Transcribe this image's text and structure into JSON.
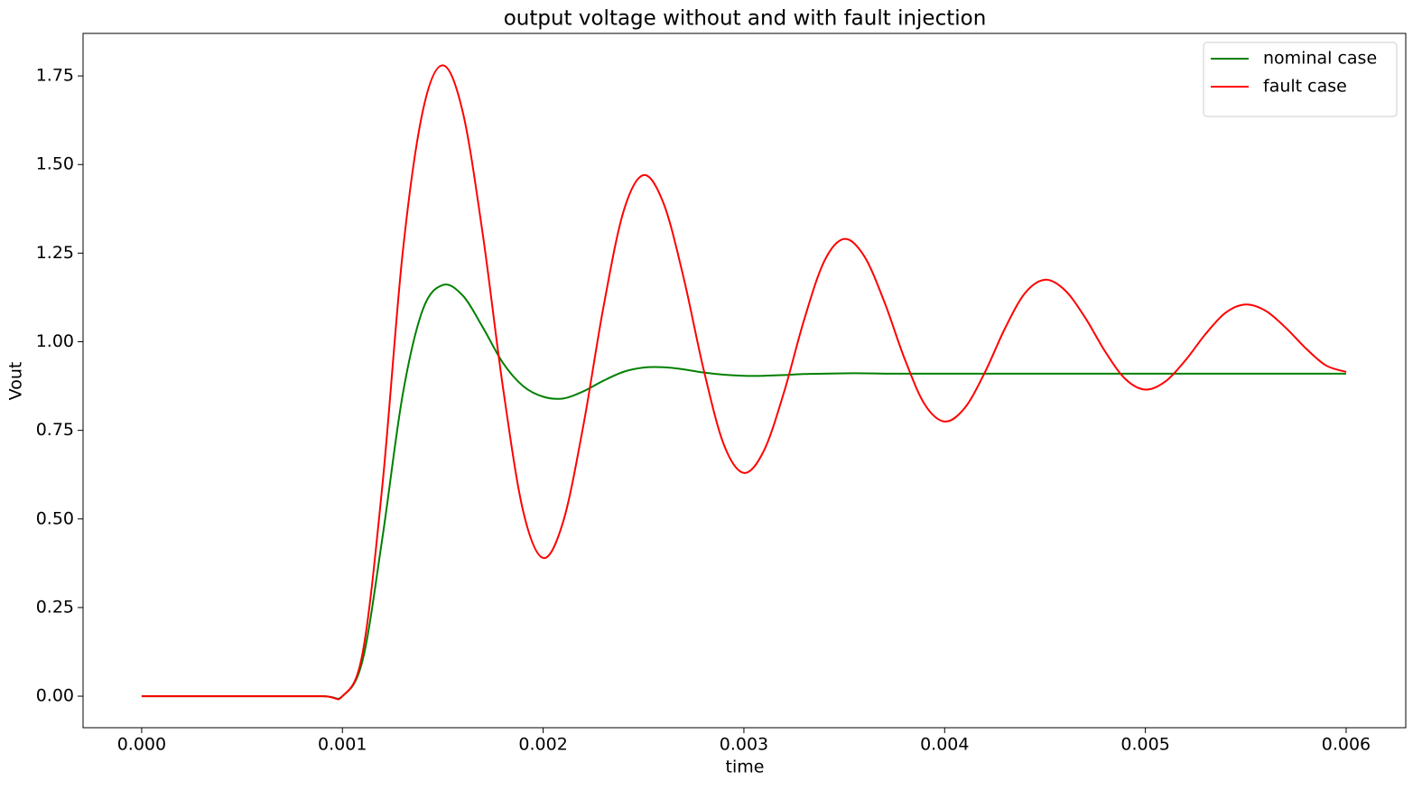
{
  "chart_data": {
    "type": "line",
    "title": "output voltage without and with fault injection",
    "x_label": "time",
    "y_label": "Vout",
    "x": [
      0,
      0.0005,
      0.0009,
      0.001,
      0.0011,
      0.0012,
      0.0013,
      0.0014,
      0.0015,
      0.0016,
      0.0017,
      0.0018,
      0.0019,
      0.002,
      0.0021,
      0.0022,
      0.0023,
      0.0024,
      0.0025,
      0.0026,
      0.0027,
      0.0028,
      0.0029,
      0.003,
      0.0031,
      0.0032,
      0.0033,
      0.0034,
      0.0035,
      0.0036,
      0.0037,
      0.0038,
      0.0039,
      0.004,
      0.0041,
      0.0042,
      0.0043,
      0.0044,
      0.0045,
      0.0046,
      0.0047,
      0.0048,
      0.0049,
      0.005,
      0.0051,
      0.0052,
      0.0053,
      0.0054,
      0.0055,
      0.0056,
      0.0057,
      0.0058,
      0.0059,
      0.006
    ],
    "series": [
      {
        "name": "nominal case",
        "color": "#008000",
        "values": [
          0,
          0,
          0,
          0,
          0.1,
          0.45,
          0.85,
          1.09,
          1.16,
          1.13,
          1.04,
          0.94,
          0.875,
          0.845,
          0.84,
          0.86,
          0.89,
          0.915,
          0.927,
          0.928,
          0.922,
          0.913,
          0.907,
          0.904,
          0.904,
          0.906,
          0.909,
          0.91,
          0.911,
          0.911,
          0.91,
          0.91,
          0.91,
          0.91,
          0.91,
          0.91,
          0.91,
          0.91,
          0.91,
          0.91,
          0.91,
          0.91,
          0.91,
          0.91,
          0.91,
          0.91,
          0.91,
          0.91,
          0.91,
          0.91,
          0.91,
          0.91,
          0.91,
          0.91
        ]
      },
      {
        "name": "fault case",
        "color": "#ff0000",
        "values": [
          0,
          0,
          0,
          0,
          0.12,
          0.6,
          1.25,
          1.65,
          1.78,
          1.647,
          1.3,
          0.87,
          0.523,
          0.39,
          0.493,
          0.763,
          1.097,
          1.367,
          1.47,
          1.39,
          1.18,
          0.92,
          0.71,
          0.63,
          0.693,
          0.858,
          1.062,
          1.227,
          1.29,
          1.241,
          1.112,
          0.953,
          0.824,
          0.775,
          0.813,
          0.913,
          1.037,
          1.137,
          1.175,
          1.145,
          1.068,
          0.972,
          0.895,
          0.865,
          0.888,
          0.948,
          1.022,
          1.082,
          1.105,
          1.087,
          1.039,
          0.981,
          0.933,
          0.915
        ]
      }
    ],
    "xlim": [
      -0.000292,
      0.006297
    ],
    "ylim": [
      -0.089,
      1.87
    ],
    "xticks": [
      {
        "value": 0,
        "label": "0.000"
      },
      {
        "value": 0.001,
        "label": "0.001"
      },
      {
        "value": 0.002,
        "label": "0.002"
      },
      {
        "value": 0.003,
        "label": "0.003"
      },
      {
        "value": 0.004,
        "label": "0.004"
      },
      {
        "value": 0.005,
        "label": "0.005"
      },
      {
        "value": 0.006,
        "label": "0.006"
      }
    ],
    "yticks": [
      {
        "value": 0,
        "label": "0.00"
      },
      {
        "value": 0.25,
        "label": "0.25"
      },
      {
        "value": 0.5,
        "label": "0.50"
      },
      {
        "value": 0.75,
        "label": "0.75"
      },
      {
        "value": 1,
        "label": "1.00"
      },
      {
        "value": 1.25,
        "label": "1.25"
      },
      {
        "value": 1.5,
        "label": "1.50"
      },
      {
        "value": 1.75,
        "label": "1.75"
      }
    ],
    "grid": false,
    "legend": "upper right"
  }
}
